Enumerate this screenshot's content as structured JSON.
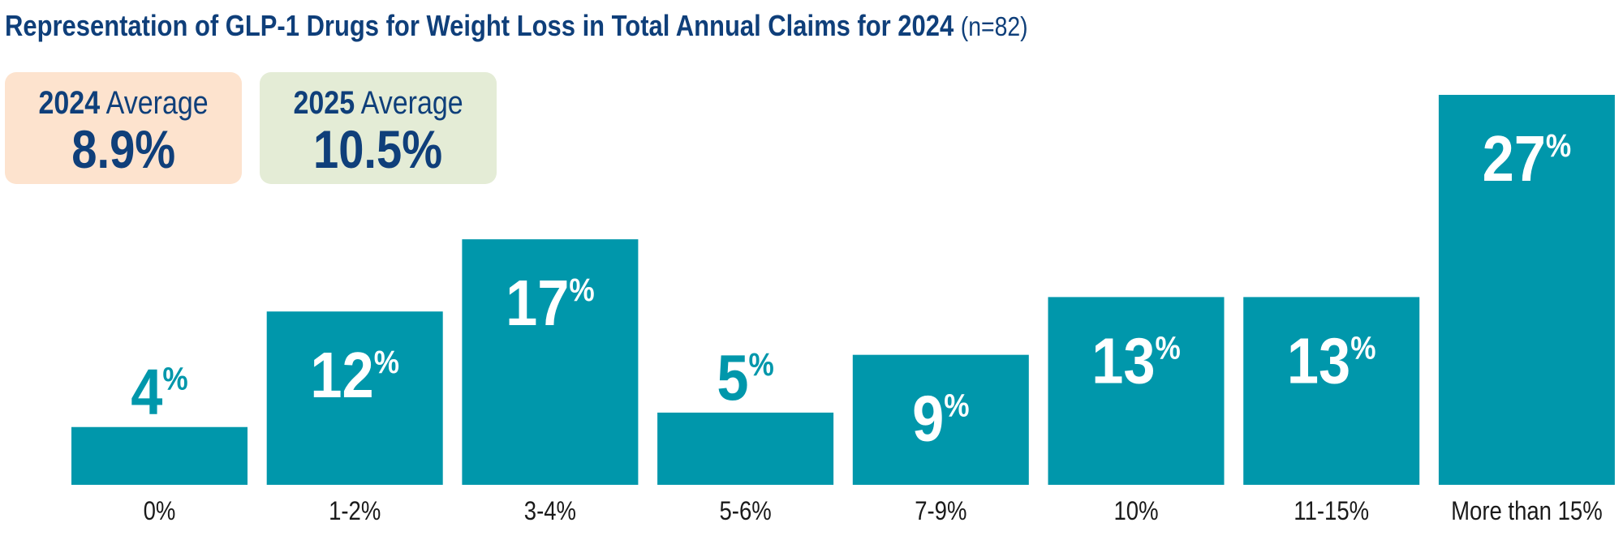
{
  "title": {
    "main": "Representation of GLP-1 Drugs for Weight Loss in Total Annual Claims for 2024",
    "n": "(n=82)"
  },
  "averages": [
    {
      "year": "2024",
      "label": "Average",
      "value": "8.9%",
      "bg": "#fde3ce"
    },
    {
      "year": "2025",
      "label": "Average",
      "value": "10.5%",
      "bg": "#e4ecd6"
    }
  ],
  "colors": {
    "bar": "#0097ab",
    "text": "#0f3f7a",
    "label_inside": "#ffffff"
  },
  "chart_data": {
    "type": "bar",
    "categories": [
      "0%",
      "1-2%",
      "3-4%",
      "5-6%",
      "7-9%",
      "10%",
      "11-15%",
      "More than 15%"
    ],
    "values": [
      4,
      12,
      17,
      5,
      9,
      13,
      13,
      27
    ],
    "value_suffix": "%",
    "title": "Representation of GLP-1 Drugs for Weight Loss in Total Annual Claims for 2024",
    "xlabel": "",
    "ylabel": "",
    "ylim": [
      0,
      27
    ],
    "grid": false,
    "legend": "none"
  }
}
